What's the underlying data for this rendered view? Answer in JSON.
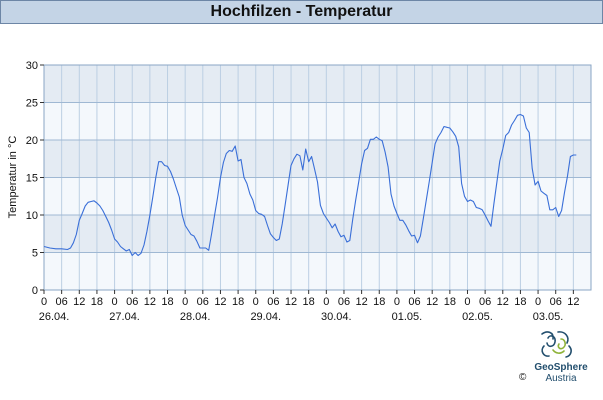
{
  "title": "Hochfilzen - Temperatur",
  "chart_data": {
    "type": "line",
    "title": "Hochfilzen - Temperatur",
    "xlabel": "",
    "ylabel": "Temperatur in °C",
    "ylim": [
      0,
      30
    ],
    "yticks": [
      0,
      5,
      10,
      15,
      20,
      25,
      30
    ],
    "x_unit": "hours since 26.04. 00:00",
    "xlim": [
      0,
      186
    ],
    "hour_tick_labels": [
      "0",
      "06",
      "12",
      "18",
      "0",
      "06",
      "12",
      "18",
      "0",
      "06",
      "12",
      "18",
      "0",
      "06",
      "12",
      "18",
      "0",
      "06",
      "12",
      "18",
      "0",
      "06",
      "12",
      "18",
      "0",
      "06",
      "12",
      "18",
      "0",
      "06",
      "12"
    ],
    "date_labels": [
      "26.04.",
      "27.04.",
      "28.04.",
      "29.04.",
      "30.04.",
      "01.05.",
      "02.05.",
      "03.05."
    ],
    "grid": true,
    "series": [
      {
        "color": "#3a6fd8",
        "points": [
          [
            0,
            5.8
          ],
          [
            2,
            5.6
          ],
          [
            4,
            5.5
          ],
          [
            6,
            5.5
          ],
          [
            8,
            5.4
          ],
          [
            9,
            5.6
          ],
          [
            10,
            6.3
          ],
          [
            11,
            7.4
          ],
          [
            12,
            9.3
          ],
          [
            13,
            10.2
          ],
          [
            14,
            11.2
          ],
          [
            15,
            11.7
          ],
          [
            16,
            11.8
          ],
          [
            17,
            11.9
          ],
          [
            18,
            11.6
          ],
          [
            19,
            11.2
          ],
          [
            20,
            10.6
          ],
          [
            21,
            9.8
          ],
          [
            22,
            9.0
          ],
          [
            23,
            8.0
          ],
          [
            24,
            6.8
          ],
          [
            25,
            6.4
          ],
          [
            26,
            5.8
          ],
          [
            27,
            5.5
          ],
          [
            28,
            5.2
          ],
          [
            29,
            5.4
          ],
          [
            30,
            4.6
          ],
          [
            31,
            5.0
          ],
          [
            32,
            4.6
          ],
          [
            33,
            4.9
          ],
          [
            34,
            6.0
          ],
          [
            35,
            7.8
          ],
          [
            36,
            10.0
          ],
          [
            37,
            12.4
          ],
          [
            38,
            15.0
          ],
          [
            39,
            17.1
          ],
          [
            40,
            17.1
          ],
          [
            41,
            16.6
          ],
          [
            42,
            16.5
          ],
          [
            43,
            15.8
          ],
          [
            44,
            14.8
          ],
          [
            45,
            13.6
          ],
          [
            46,
            12.4
          ],
          [
            47,
            10.0
          ],
          [
            48,
            8.6
          ],
          [
            49,
            8.0
          ],
          [
            50,
            7.4
          ],
          [
            51,
            7.2
          ],
          [
            52,
            6.5
          ],
          [
            53,
            5.6
          ],
          [
            54,
            5.6
          ],
          [
            55,
            5.6
          ],
          [
            56,
            5.3
          ],
          [
            57,
            7.5
          ],
          [
            58,
            10.0
          ],
          [
            59,
            12.3
          ],
          [
            60,
            15.0
          ],
          [
            61,
            17.0
          ],
          [
            62,
            18.2
          ],
          [
            63,
            18.6
          ],
          [
            64,
            18.5
          ],
          [
            65,
            19.2
          ],
          [
            66,
            17.2
          ],
          [
            67,
            17.4
          ],
          [
            68,
            15.0
          ],
          [
            69,
            14.2
          ],
          [
            70,
            12.8
          ],
          [
            71,
            12.0
          ],
          [
            72,
            10.6
          ],
          [
            73,
            10.2
          ],
          [
            74,
            10.1
          ],
          [
            75,
            9.8
          ],
          [
            76,
            8.6
          ],
          [
            77,
            7.5
          ],
          [
            78,
            7.0
          ],
          [
            79,
            6.6
          ],
          [
            80,
            6.8
          ],
          [
            81,
            8.8
          ],
          [
            82,
            11.4
          ],
          [
            83,
            14.0
          ],
          [
            84,
            16.6
          ],
          [
            85,
            17.5
          ],
          [
            86,
            18.1
          ],
          [
            87,
            17.9
          ],
          [
            88,
            16.0
          ],
          [
            89,
            18.8
          ],
          [
            90,
            17.1
          ],
          [
            91,
            17.8
          ],
          [
            92,
            16.1
          ],
          [
            93,
            14.4
          ],
          [
            94,
            11.3
          ],
          [
            95,
            10.2
          ],
          [
            96,
            9.6
          ],
          [
            97,
            9.0
          ],
          [
            98,
            8.3
          ],
          [
            99,
            8.8
          ],
          [
            100,
            7.8
          ],
          [
            101,
            7.1
          ],
          [
            102,
            7.3
          ],
          [
            103,
            6.4
          ],
          [
            104,
            6.6
          ],
          [
            105,
            9.5
          ],
          [
            106,
            12.0
          ],
          [
            107,
            14.4
          ],
          [
            108,
            16.8
          ],
          [
            109,
            18.6
          ],
          [
            110,
            18.9
          ],
          [
            111,
            20.1
          ],
          [
            112,
            20.1
          ],
          [
            113,
            20.4
          ],
          [
            114,
            20.1
          ],
          [
            115,
            19.9
          ],
          [
            116,
            18.4
          ],
          [
            117,
            16.4
          ],
          [
            118,
            12.8
          ],
          [
            119,
            11.2
          ],
          [
            120,
            10.2
          ],
          [
            121,
            9.3
          ],
          [
            122,
            9.3
          ],
          [
            123,
            8.7
          ],
          [
            124,
            7.9
          ],
          [
            125,
            7.2
          ],
          [
            126,
            7.3
          ],
          [
            127,
            6.3
          ],
          [
            128,
            7.2
          ],
          [
            129,
            9.6
          ],
          [
            130,
            12.0
          ],
          [
            131,
            14.5
          ],
          [
            132,
            17.0
          ],
          [
            133,
            19.5
          ],
          [
            134,
            20.4
          ],
          [
            135,
            21.0
          ],
          [
            136,
            21.8
          ],
          [
            137,
            21.7
          ],
          [
            138,
            21.6
          ],
          [
            139,
            21.1
          ],
          [
            140,
            20.5
          ],
          [
            141,
            19.1
          ],
          [
            142,
            14.2
          ],
          [
            143,
            12.5
          ],
          [
            144,
            11.8
          ],
          [
            145,
            12.0
          ],
          [
            146,
            11.8
          ],
          [
            147,
            11.0
          ],
          [
            148,
            10.9
          ],
          [
            149,
            10.7
          ],
          [
            150,
            10.0
          ],
          [
            151,
            9.2
          ],
          [
            152,
            8.5
          ],
          [
            153,
            11.6
          ],
          [
            154,
            14.4
          ],
          [
            155,
            17.2
          ],
          [
            156,
            18.8
          ],
          [
            157,
            20.6
          ],
          [
            158,
            21.0
          ],
          [
            159,
            22.0
          ],
          [
            160,
            22.6
          ],
          [
            161,
            23.3
          ],
          [
            162,
            23.4
          ],
          [
            163,
            23.2
          ],
          [
            164,
            21.6
          ],
          [
            165,
            21.0
          ],
          [
            166,
            16.2
          ],
          [
            167,
            14.0
          ],
          [
            168,
            14.5
          ],
          [
            169,
            13.2
          ],
          [
            170,
            12.9
          ],
          [
            171,
            12.6
          ],
          [
            172,
            10.7
          ],
          [
            173,
            10.7
          ],
          [
            174,
            11.0
          ],
          [
            175,
            9.8
          ],
          [
            176,
            10.6
          ],
          [
            177,
            13.0
          ],
          [
            178,
            15.2
          ],
          [
            179,
            17.8
          ],
          [
            180,
            18.0
          ],
          [
            181,
            18.0
          ]
        ]
      }
    ]
  },
  "logo": {
    "name": "GeoSphere",
    "sub": "Austria",
    "copyright": "©",
    "color": "#234f6e",
    "accent": "#8fb33a"
  }
}
